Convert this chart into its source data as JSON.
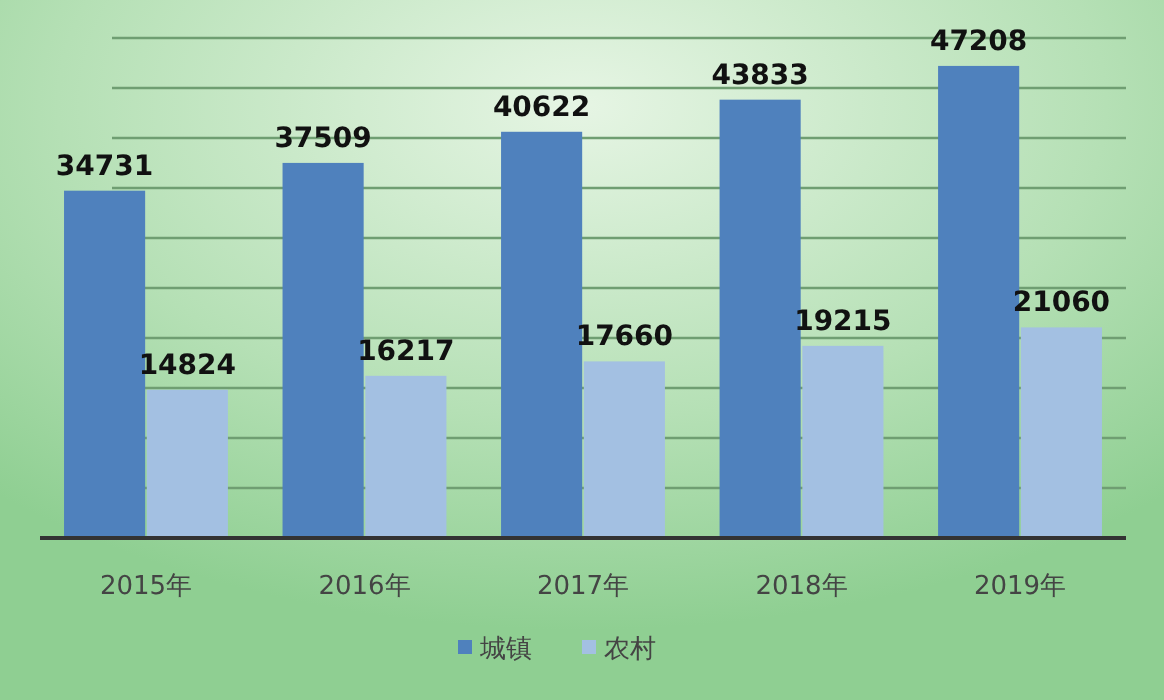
{
  "chart_data": {
    "type": "bar",
    "categories": [
      "2015年",
      "2016年",
      "2017年",
      "2018年",
      "2019年"
    ],
    "series": [
      {
        "name": "城镇",
        "color": "#4f81bd",
        "values": [
          34731,
          37509,
          40622,
          43833,
          47208
        ]
      },
      {
        "name": "农村",
        "color": "#a3c0e2",
        "values": [
          14824,
          16217,
          17660,
          19215,
          21060
        ]
      }
    ],
    "ylim": [
      0,
      50000
    ],
    "yticks": [
      0,
      5000,
      10000,
      15000,
      20000,
      25000,
      30000,
      35000,
      40000,
      45000,
      50000
    ],
    "tick_labels": "x",
    "grid": "y",
    "data_labels": true,
    "legend": "bottom"
  }
}
